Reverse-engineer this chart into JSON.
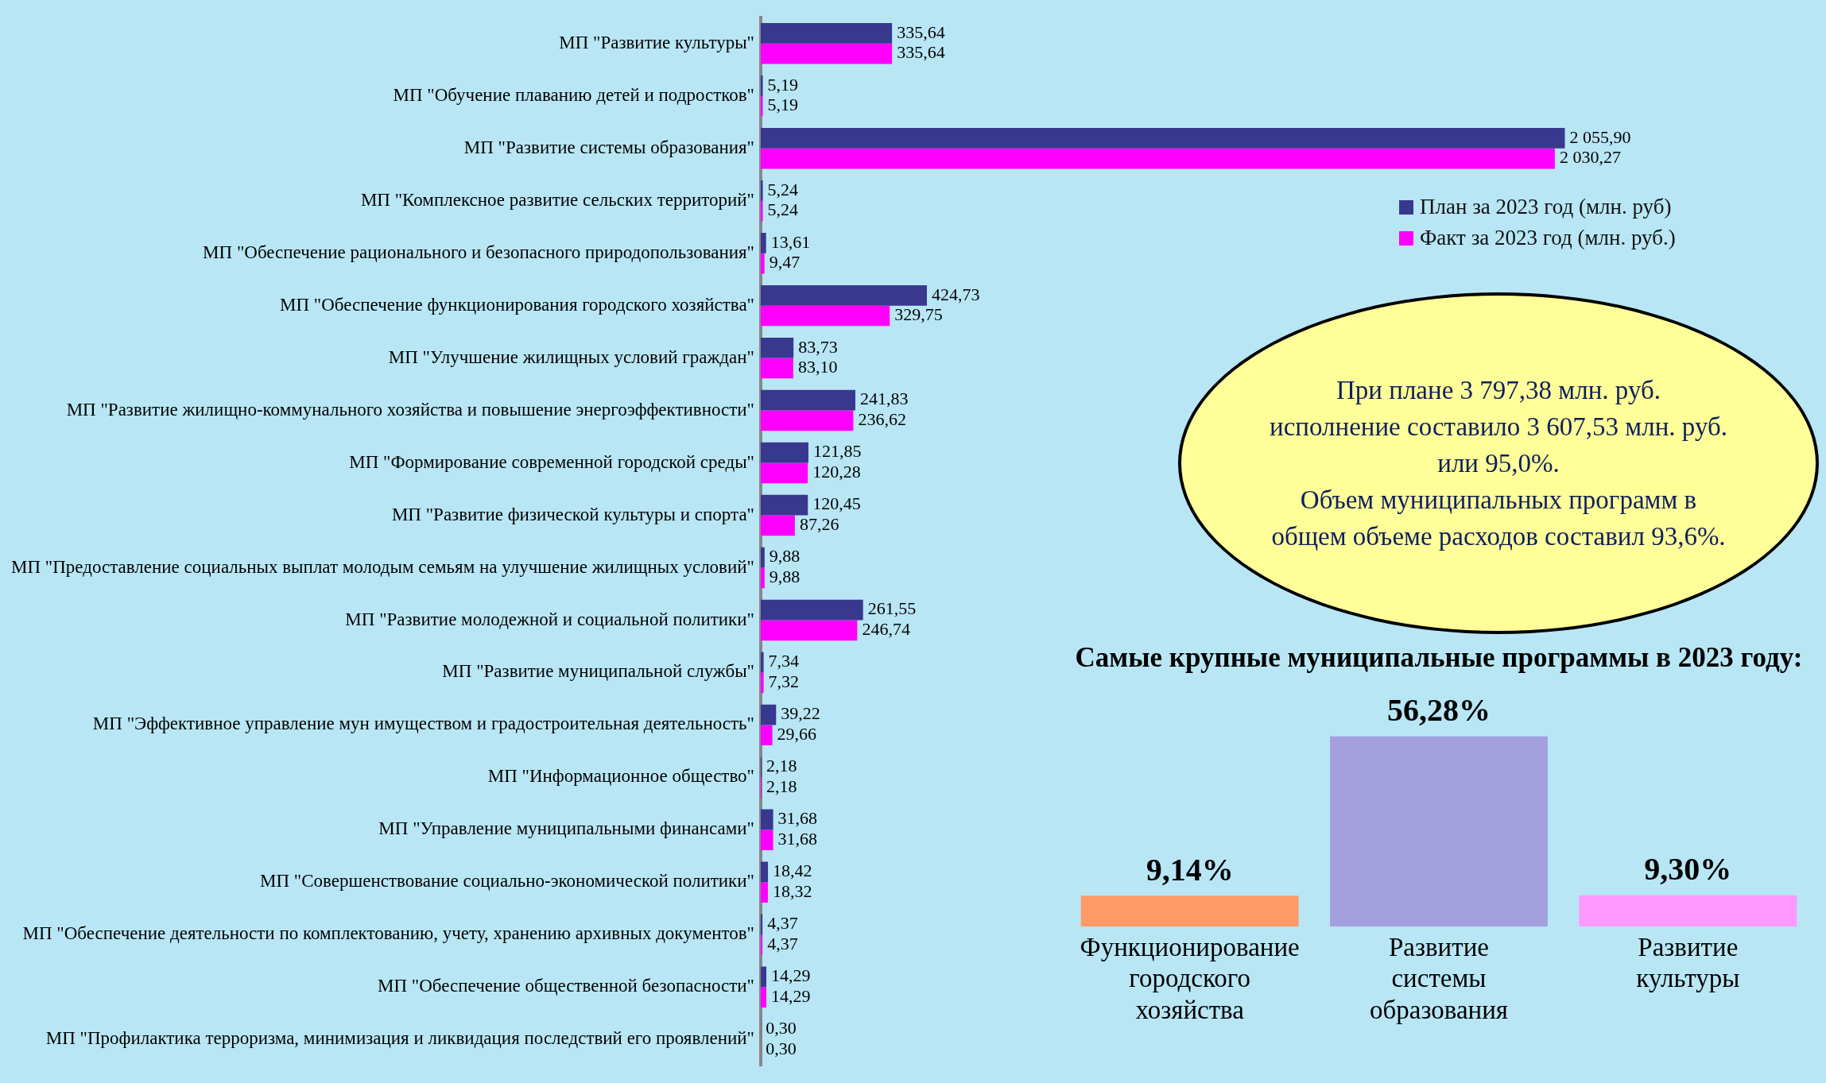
{
  "chart_data": [
    {
      "type": "bar",
      "orientation": "horizontal",
      "categories": [
        "МП \"Развитие культуры\"",
        "МП \"Обучение плаванию детей и подростков\"",
        "МП \"Развитие системы образования\"",
        "МП \"Комплексное развитие сельских территорий\"",
        "МП \"Обеспечение рационального и безопасного природопользования\"",
        "МП \"Обеспечение функционирования городского хозяйства\"",
        "МП \"Улучшение жилищных условий граждан\"",
        "МП \"Развитие жилищно-коммунального хозяйства и повышение энергоэффективности\"",
        "МП \"Формирование современной городской среды\"",
        "МП \"Развитие физической культуры и спорта\"",
        "МП \"Предоставление социальных выплат молодым семьям на улучшение жилищных условий\"",
        "МП \"Развитие молодежной и социальной политики\"",
        "МП \"Развитие муниципальной службы\"",
        "МП \"Эффективное управление мун имуществом и градостроительная деятельность\"",
        "МП \"Информационное общество\"",
        "МП \"Управление муниципальными финансами\"",
        "МП \"Совершенствование социально-экономической политики\"",
        "МП \"Обеспечение деятельности по комплектованию, учету, хранению архивных документов\"",
        "МП \"Обеспечение общественной безопасности\"",
        "МП \"Профилактика терроризма, минимизация и ликвидация последствий его проявлений\""
      ],
      "series": [
        {
          "name": "План за 2023 год (млн. руб)",
          "color": "#38388f",
          "values": [
            335.64,
            5.19,
            2055.9,
            5.24,
            13.61,
            424.73,
            83.73,
            241.83,
            121.85,
            120.45,
            9.88,
            261.55,
            7.34,
            39.22,
            2.18,
            31.68,
            18.42,
            4.37,
            14.29,
            0.3
          ],
          "value_labels": [
            "335,64",
            "5,19",
            "2 055,90",
            "5,24",
            "13,61",
            "424,73",
            "83,73",
            "241,83",
            "121,85",
            "120,45",
            "9,88",
            "261,55",
            "7,34",
            "39,22",
            "2,18",
            "31,68",
            "18,42",
            "4,37",
            "14,29",
            "0,30"
          ]
        },
        {
          "name": "Факт за 2023 год (млн. руб.)",
          "color": "#ff00ff",
          "values": [
            335.64,
            5.19,
            2030.27,
            5.24,
            9.47,
            329.75,
            83.1,
            236.62,
            120.28,
            87.26,
            9.88,
            246.74,
            7.32,
            29.66,
            2.18,
            31.68,
            18.32,
            4.37,
            14.29,
            0.3
          ],
          "value_labels": [
            "335,64",
            "5,19",
            "2 030,27",
            "5,24",
            "9,47",
            "329,75",
            "83,10",
            "236,62",
            "120,28",
            "87,26",
            "9,88",
            "246,74",
            "7,32",
            "29,66",
            "2,18",
            "31,68",
            "18,32",
            "4,37",
            "14,29",
            "0,30"
          ]
        }
      ],
      "legend": "top right",
      "tick_labels": "y"
    },
    {
      "type": "other",
      "annotations": [
        "При плане 3 797,38 млн. руб.",
        "исполнение составило 3 607,53 млн. руб.",
        "или 95,0%.",
        "Объем муниципальных программ в",
        "общем объеме расходов составил 93,6%."
      ]
    },
    {
      "type": "bar",
      "title": "Самые крупные муниципальные программы в 2023 году:",
      "categories": [
        "Функционирование городского хозяйства",
        "Развитие системы образования",
        "Развитие культуры"
      ],
      "values": [
        9.14,
        56.28,
        9.3
      ],
      "colors": [
        "#ff9966",
        "#a4a0de",
        "#ff99ff"
      ],
      "value_labels": [
        "9,14%",
        "56,28%",
        "9,30%"
      ],
      "tick_labels": "x"
    }
  ]
}
